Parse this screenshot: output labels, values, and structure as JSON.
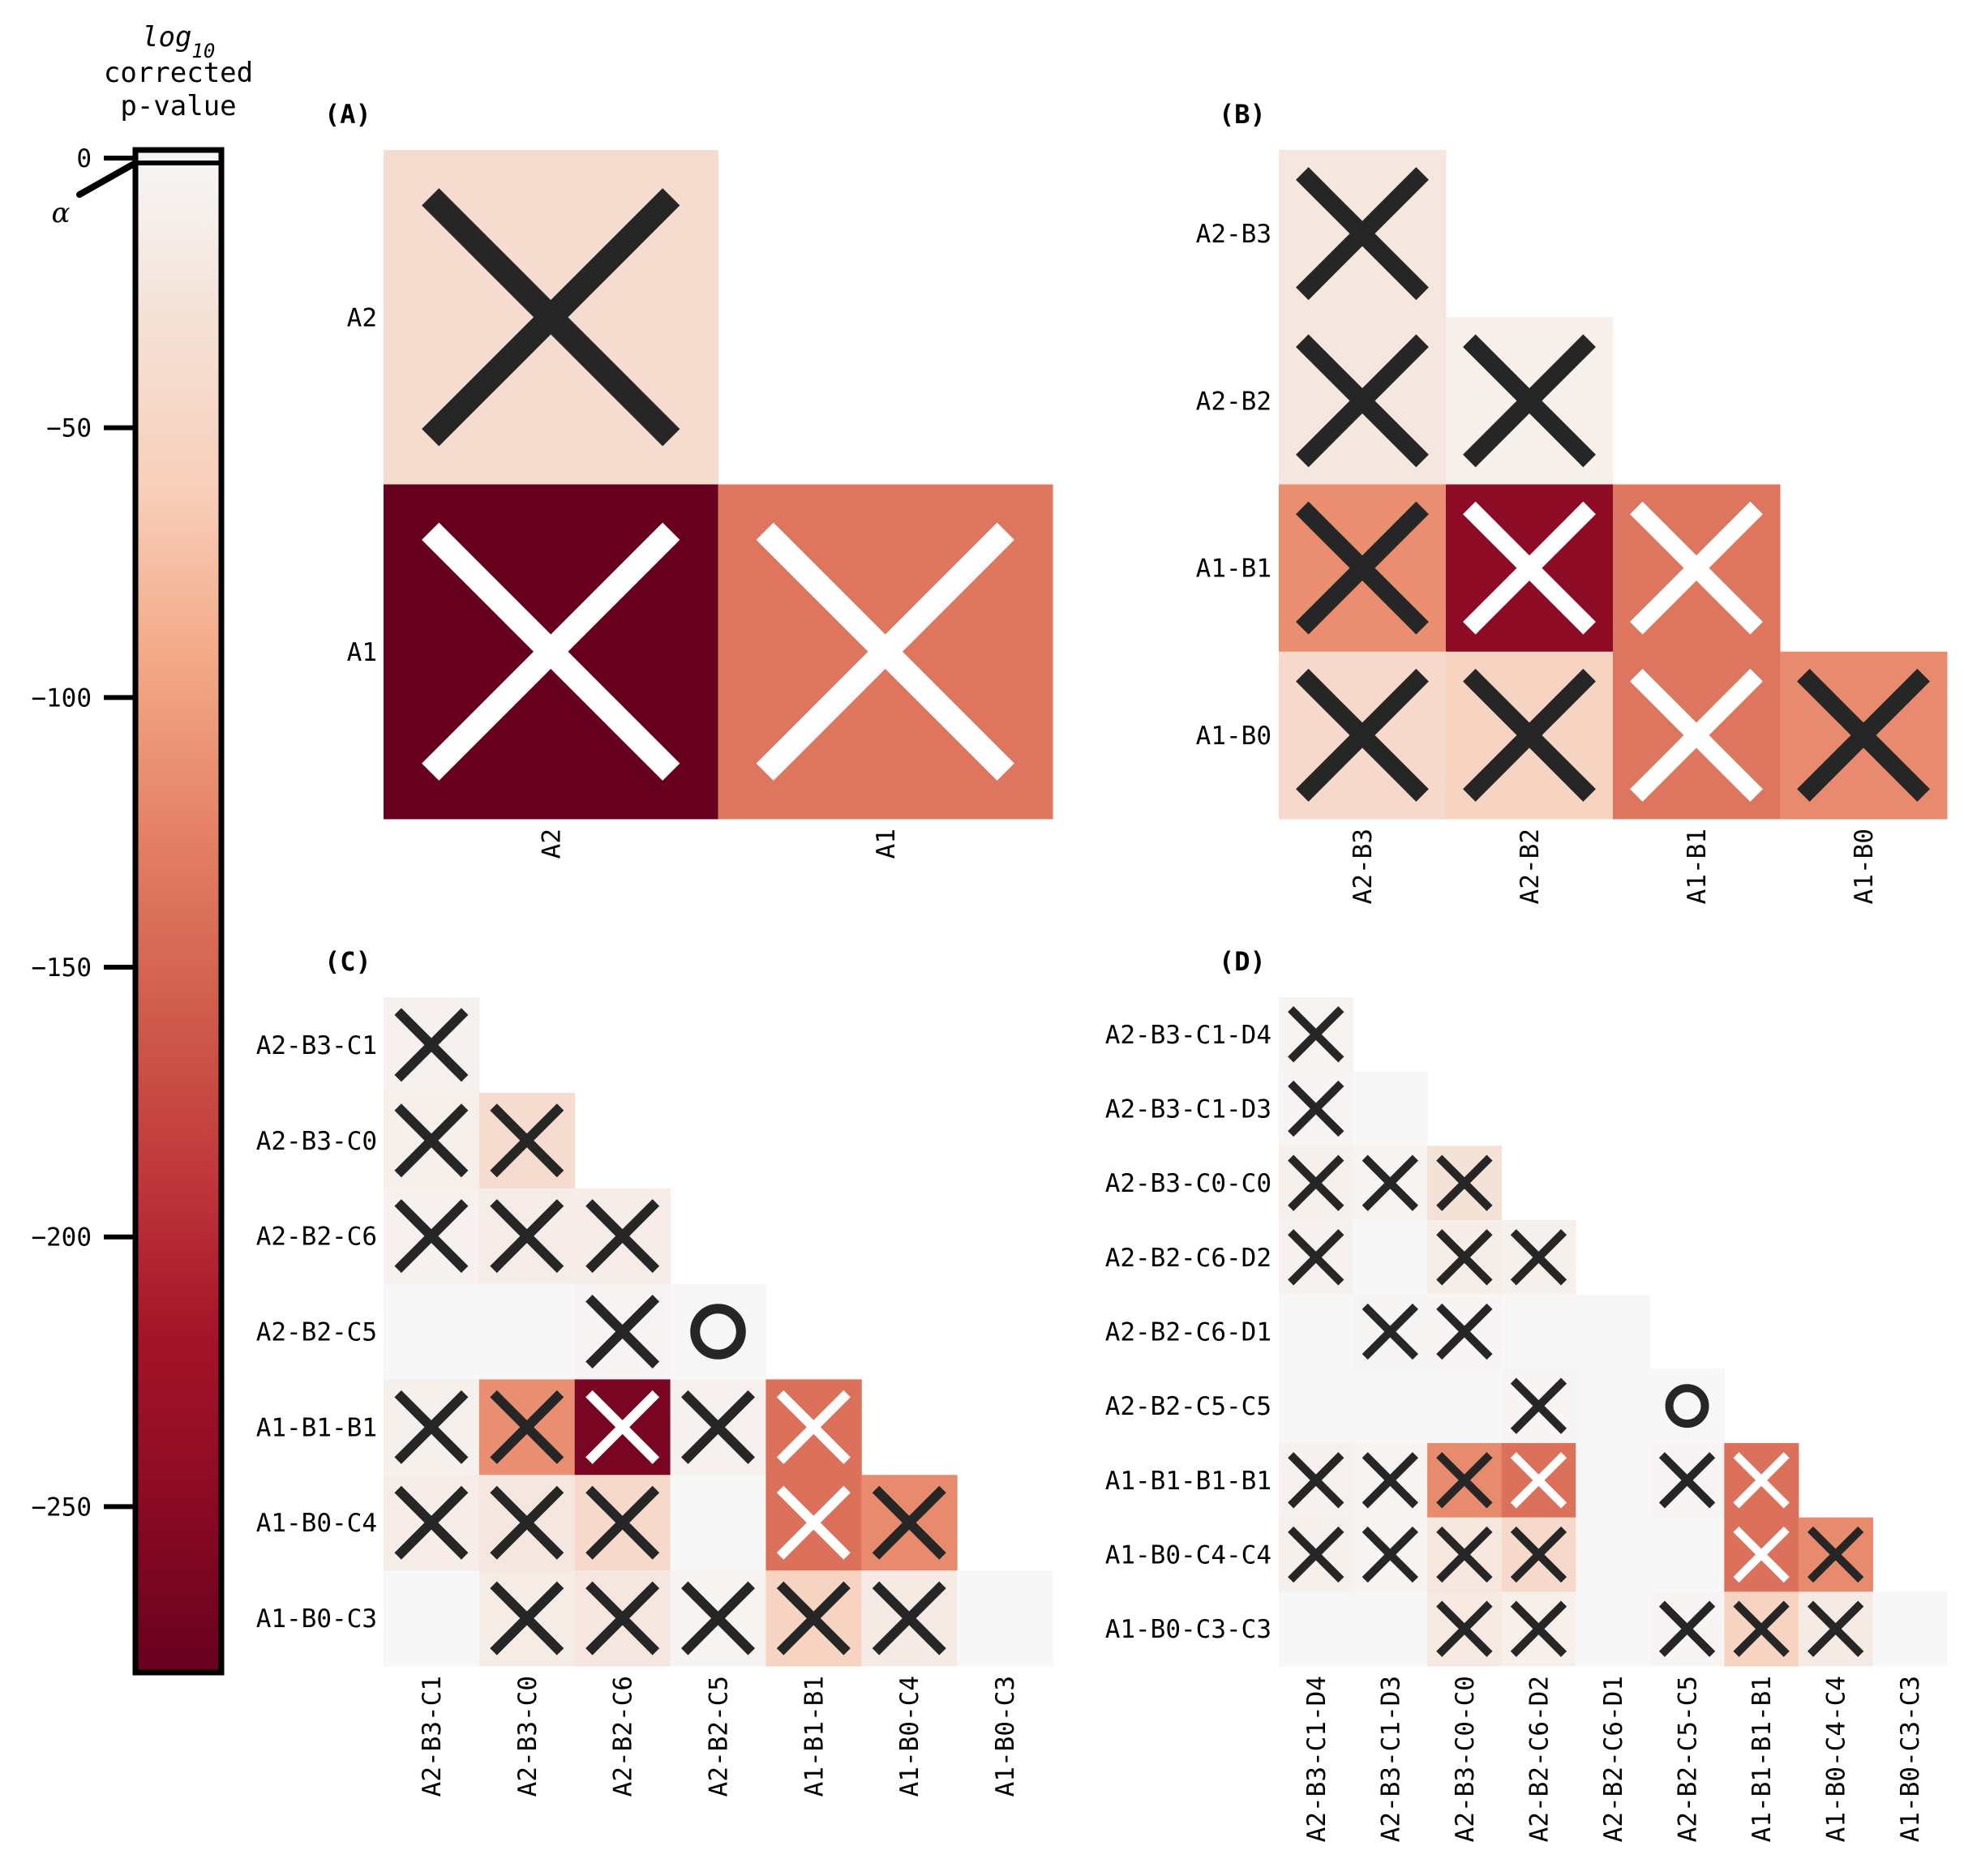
{
  "colorbar": {
    "title_line1": "log",
    "title_sub": "10",
    "title_line2": "corrected",
    "title_line3": "p-value",
    "alpha_label": "α",
    "ticks": [
      0,
      -50,
      -100,
      -150,
      -200,
      -250
    ],
    "tick_labels": [
      "0",
      "−50",
      "−100",
      "−150",
      "−200",
      "−250"
    ],
    "range": [
      -280,
      0
    ],
    "colormap": "RdBu_r (reds half)",
    "stops": [
      "#f7f7f7",
      "#f4e1d6",
      "#f8cfba",
      "#f3a987",
      "#e58267",
      "#d1604e",
      "#c13a3c",
      "#a51428",
      "#8b0a24",
      "#67001f"
    ]
  },
  "chart_data": [
    {
      "type": "heatmap",
      "panel": "(A)",
      "rows": [
        "A2",
        "A1"
      ],
      "cols": [
        "A2",
        "A1"
      ],
      "log10_p": [
        [
          -40,
          null
        ],
        [
          -285,
          -135
        ]
      ],
      "markers": [
        [
          "X",
          null
        ],
        [
          "X",
          "X"
        ]
      ]
    },
    {
      "type": "heatmap",
      "panel": "(B)",
      "rows": [
        "A2-B3",
        "A2-B2",
        "A1-B1",
        "A1-B0"
      ],
      "cols": [
        "A2-B3",
        "A2-B2",
        "A1-B1",
        "A1-B0"
      ],
      "log10_p": [
        [
          -22,
          null,
          null,
          null
        ],
        [
          -22,
          -12,
          null,
          null
        ],
        [
          -115,
          -245,
          -135,
          null
        ],
        [
          -45,
          -55,
          -135,
          -118
        ]
      ],
      "markers": [
        [
          "X",
          null,
          null,
          null
        ],
        [
          "X",
          "X",
          null,
          null
        ],
        [
          "X",
          "X",
          "X",
          null
        ],
        [
          "X",
          "X",
          "X",
          "X"
        ]
      ]
    },
    {
      "type": "heatmap",
      "panel": "(C)",
      "rows": [
        "A2-B3-C1",
        "A2-B3-C0",
        "A2-B2-C6",
        "A2-B2-C5",
        "A1-B1-B1",
        "A1-B0-C4",
        "A1-B0-C3"
      ],
      "cols": [
        "A2-B3-C1",
        "A2-B3-C0",
        "A2-B2-C6",
        "A2-B2-C5",
        "A1-B1-B1",
        "A1-B0-C4",
        "A1-B0-C3"
      ],
      "log10_p": [
        [
          -8,
          null,
          null,
          null,
          null,
          null,
          null
        ],
        [
          -12,
          -40,
          null,
          null,
          null,
          null,
          null
        ],
        [
          -8,
          -15,
          -14,
          null,
          null,
          null,
          null
        ],
        [
          0,
          0,
          -4,
          0,
          null,
          null,
          null
        ],
        [
          -10,
          -115,
          -265,
          -8,
          -140,
          null,
          null
        ],
        [
          -14,
          -22,
          -45,
          0,
          -140,
          -118,
          null
        ],
        [
          0,
          -16,
          -22,
          -6,
          -55,
          -18,
          0
        ]
      ],
      "markers": [
        [
          "X",
          null,
          null,
          null,
          null,
          null,
          null
        ],
        [
          "X",
          "X",
          null,
          null,
          null,
          null,
          null
        ],
        [
          "X",
          "X",
          "X",
          null,
          null,
          null,
          null
        ],
        [
          "",
          "",
          "X",
          "O",
          null,
          null,
          null
        ],
        [
          "X",
          "X",
          "X",
          "X",
          "X",
          null,
          null
        ],
        [
          "X",
          "X",
          "X",
          "",
          "X",
          "X",
          null
        ],
        [
          "",
          "X",
          "X",
          "X",
          "X",
          "X",
          ""
        ]
      ]
    },
    {
      "type": "heatmap",
      "panel": "(D)",
      "rows": [
        "A2-B3-C1-D4",
        "A2-B3-C1-D3",
        "A2-B3-C0-C0",
        "A2-B2-C6-D2",
        "A2-B2-C6-D1",
        "A2-B2-C5-C5",
        "A1-B1-B1-B1",
        "A1-B0-C4-C4",
        "A1-B0-C3-C3"
      ],
      "cols": [
        "A2-B3-C1-D4",
        "A2-B3-C1-D3",
        "A2-B3-C0-C0",
        "A2-B2-C6-D2",
        "A2-B2-C6-D1",
        "A2-B2-C5-C5",
        "A1-B1-B1-B1",
        "A1-B0-C4-C4",
        "A1-B0-C3-C3"
      ],
      "log10_p": [
        [
          -6,
          null,
          null,
          null,
          null,
          null,
          null,
          null,
          null
        ],
        [
          -4,
          0,
          null,
          null,
          null,
          null,
          null,
          null,
          null
        ],
        [
          -10,
          -6,
          -30,
          null,
          null,
          null,
          null,
          null,
          null
        ],
        [
          -8,
          0,
          -14,
          -10,
          null,
          null,
          null,
          null,
          null
        ],
        [
          0,
          -3,
          -4,
          0,
          0,
          null,
          null,
          null,
          null
        ],
        [
          0,
          0,
          0,
          -4,
          0,
          0,
          null,
          null,
          null
        ],
        [
          -8,
          -6,
          -118,
          -140,
          0,
          -4,
          -140,
          null,
          null
        ],
        [
          -10,
          -6,
          -24,
          -45,
          0,
          0,
          -140,
          -118,
          null
        ],
        [
          0,
          0,
          -20,
          -12,
          0,
          -4,
          -55,
          -18,
          0
        ]
      ],
      "markers": [
        [
          "X",
          null,
          null,
          null,
          null,
          null,
          null,
          null,
          null
        ],
        [
          "X",
          "",
          null,
          null,
          null,
          null,
          null,
          null,
          null
        ],
        [
          "X",
          "X",
          "X",
          null,
          null,
          null,
          null,
          null,
          null
        ],
        [
          "X",
          "",
          "X",
          "X",
          null,
          null,
          null,
          null,
          null
        ],
        [
          "",
          "X",
          "X",
          "",
          "",
          null,
          null,
          null,
          null
        ],
        [
          "",
          "",
          "",
          "X",
          "",
          "O",
          null,
          null,
          null
        ],
        [
          "X",
          "X",
          "X",
          "X",
          "",
          "X",
          "X",
          null,
          null
        ],
        [
          "X",
          "X",
          "X",
          "X",
          "",
          "",
          "X",
          "X",
          null
        ],
        [
          "",
          "",
          "X",
          "X",
          "",
          "X",
          "X",
          "X",
          ""
        ]
      ]
    }
  ]
}
